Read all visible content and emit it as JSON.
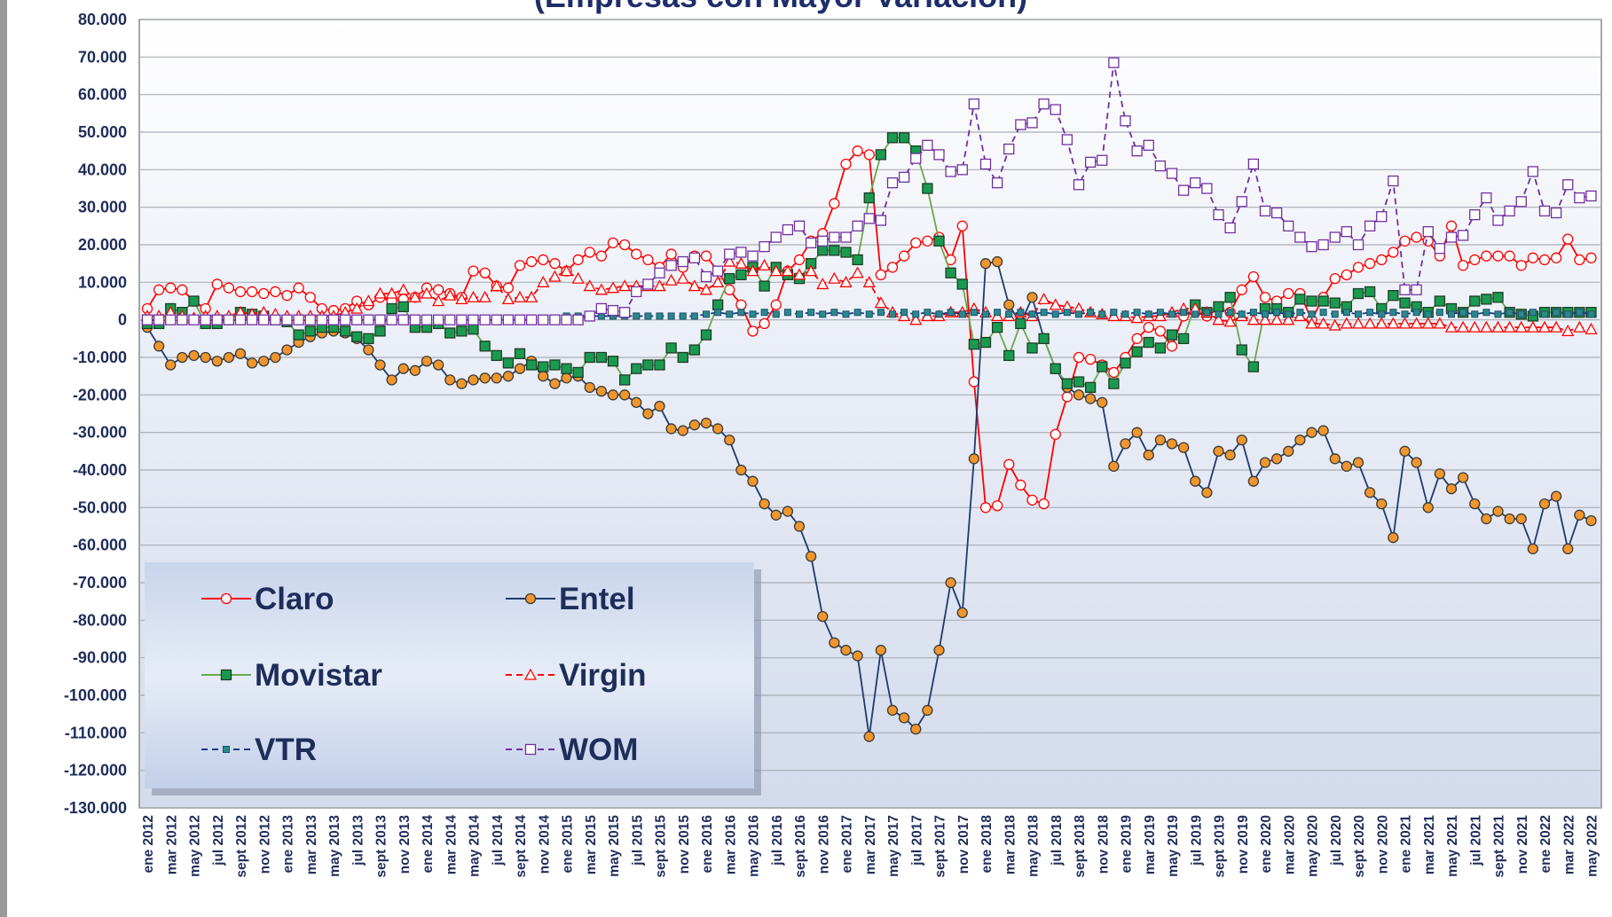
{
  "chart_data": {
    "type": "line",
    "title": "(Empresas con Mayor Variación)",
    "grid": true,
    "legend_position": "lower left",
    "categories": [
      "ene 2012",
      null,
      "mar 2012",
      null,
      "may 2012",
      null,
      "jul 2012",
      null,
      "sept 2012",
      null,
      "nov 2012",
      null,
      "ene 2013",
      null,
      "mar 2013",
      null,
      "may 2013",
      null,
      "jul 2013",
      null,
      "sept 2013",
      null,
      "nov 2013",
      null,
      "ene 2014",
      null,
      "mar 2014",
      null,
      "may 2014",
      null,
      "jul 2014",
      null,
      "sept 2014",
      null,
      "nov 2014",
      null,
      "ene 2015",
      null,
      "mar 2015",
      null,
      "may 2015",
      null,
      "jul 2015",
      null,
      "sept 2015",
      null,
      "nov 2015",
      null,
      "ene 2016",
      null,
      "mar 2016",
      null,
      "may 2016",
      null,
      "jul 2016",
      null,
      "sept 2016",
      null,
      "nov 2016",
      null,
      "ene 2017",
      null,
      "mar 2017",
      null,
      "may 2017",
      null,
      "jul 2017",
      null,
      "sept 2017",
      null,
      "nov 2017",
      null,
      "ene 2018",
      null,
      "mar 2018",
      null,
      "may 2018",
      null,
      "jul 2018",
      null,
      "sept 2018",
      null,
      "nov 2018",
      null,
      "ene 2019",
      null,
      "mar 2019",
      null,
      "may 2019",
      null,
      "jul 2019",
      null,
      "sept 2019",
      null,
      "nov 2019",
      null,
      "ene 2020",
      null,
      "mar 2020",
      null,
      "may 2020",
      null,
      "jul 2020",
      null,
      "sept 2020",
      null,
      "nov 2020",
      null,
      "ene 2021",
      null,
      "mar 2021",
      null,
      "may 2021",
      null,
      "jul 2021",
      null,
      "sept 2021",
      null,
      "nov 2021",
      null,
      "ene 2022",
      null,
      "mar 2022",
      null,
      "may 2022"
    ],
    "ylim": [
      -130000,
      80000
    ],
    "yticks": [
      {
        "value": 80000,
        "label": "80.000"
      },
      {
        "value": 70000,
        "label": "70.000"
      },
      {
        "value": 60000,
        "label": "60.000"
      },
      {
        "value": 50000,
        "label": "50.000"
      },
      {
        "value": 40000,
        "label": "40.000"
      },
      {
        "value": 30000,
        "label": "30.000"
      },
      {
        "value": 20000,
        "label": "20.000"
      },
      {
        "value": 10000,
        "label": "10.000"
      },
      0,
      {
        "value": -10000,
        "label": "-10.000"
      },
      {
        "value": -20000,
        "label": "-20.000"
      },
      {
        "value": -30000,
        "label": "-30.000"
      },
      {
        "value": -40000,
        "label": "-40.000"
      },
      {
        "value": -50000,
        "label": "-50.000"
      },
      {
        "value": -60000,
        "label": "-60.000"
      },
      {
        "value": -70000,
        "label": "-70.000"
      },
      {
        "value": -80000,
        "label": "-80.000"
      },
      {
        "value": -90000,
        "label": "-90.000"
      },
      {
        "value": -100000,
        "label": "-100.000"
      },
      {
        "value": -110000,
        "label": "-110.000"
      },
      {
        "value": -120000,
        "label": "-120.000"
      },
      {
        "value": -130000,
        "label": "-130.000"
      }
    ],
    "series": [
      {
        "name": "Claro",
        "color": "#ff0000",
        "marker": "circle",
        "marker_fill": "#ffffff",
        "dashed": false,
        "values": [
          3000,
          8000,
          8500,
          8000,
          5000,
          3000,
          9500,
          8500,
          7500,
          7500,
          7000,
          7500,
          6500,
          8500,
          6000,
          3000,
          2500,
          3000,
          5000,
          4000,
          6000,
          5000,
          5500,
          6000,
          8500,
          8000,
          7000,
          6000,
          13000,
          12500,
          9000,
          8500,
          14500,
          15500,
          16000,
          15000,
          13000,
          16000,
          18000,
          17000,
          20500,
          20000,
          17500,
          16000,
          14000,
          17500,
          14000,
          17000,
          17000,
          13000,
          8000,
          4000,
          -3000,
          -1000,
          4000,
          13000,
          16000,
          21000,
          23000,
          31000,
          41500,
          45000,
          44000,
          12000,
          14000,
          17000,
          20500,
          21000,
          22000,
          16000,
          25000,
          -16500,
          -50000,
          -49500,
          -38500,
          -44000,
          -48000,
          -49000,
          -30500,
          -20500,
          -10000,
          -10500,
          -12000,
          -14000,
          -10000,
          -5000,
          -2000,
          -3000,
          -7000,
          1000,
          2000,
          1000,
          3000,
          2000,
          8000,
          11500,
          6000,
          5000,
          7000,
          7000,
          0,
          6000,
          11000,
          12000,
          14000,
          15000,
          16000,
          18000,
          21000,
          22000,
          21000,
          17000,
          25000,
          14500,
          16000,
          17000,
          17000,
          17000,
          14500,
          16500,
          16000,
          16500,
          21500,
          16000,
          16500
        ]
      },
      {
        "name": "Entel",
        "color": "#1f3a6e",
        "marker": "circle",
        "marker_fill": "#f0962c",
        "dashed": false,
        "values": [
          -2000,
          -7000,
          -12000,
          -10000,
          -9500,
          -10000,
          -11000,
          -10000,
          -9000,
          -11500,
          -11000,
          -10000,
          -8000,
          -6000,
          -4500,
          -3500,
          -3000,
          -3500,
          -5000,
          -8000,
          -12000,
          -16000,
          -13000,
          -13500,
          -11000,
          -12000,
          -16000,
          -17000,
          -16000,
          -15500,
          -15500,
          -15000,
          -13000,
          -11000,
          -15000,
          -17000,
          -15500,
          -15000,
          -18000,
          -19000,
          -20000,
          -20000,
          -22000,
          -25000,
          -23000,
          -29000,
          -29500,
          -28000,
          -27500,
          -29000,
          -32000,
          -40000,
          -43000,
          -49000,
          -52000,
          -51000,
          -55000,
          -63000,
          -79000,
          -86000,
          -88000,
          -89500,
          -111000,
          -88000,
          -104000,
          -106000,
          -109000,
          -104000,
          -88000,
          -70000,
          -78000,
          -37000,
          15000,
          15500,
          4000,
          -1000,
          6000,
          -5000,
          -13000,
          -18000,
          -20000,
          -21000,
          -22000,
          -39000,
          -33000,
          -30000,
          -36000,
          -32000,
          -33000,
          -34000,
          -43000,
          -46000,
          -35000,
          -36000,
          -32000,
          -43000,
          -38000,
          -37000,
          -35000,
          -32000,
          -30000,
          -29500,
          -37000,
          -39000,
          -38000,
          -46000,
          -49000,
          -58000,
          -35000,
          -38000,
          -50000,
          -41000,
          -45000,
          -42000,
          -49000,
          -53000,
          -51000,
          -53000,
          -53000,
          -61000,
          -49000,
          -47000,
          -61000,
          -52000,
          -53500
        ]
      },
      {
        "name": "Movistar",
        "color": "#6aa84f",
        "marker": "square",
        "marker_fill": "#1a9a50",
        "dashed": false,
        "values": [
          -1000,
          -1000,
          3000,
          2000,
          5000,
          -1000,
          -1000,
          0,
          2000,
          1500,
          1000,
          0,
          -500,
          -4000,
          -3000,
          -2000,
          -2000,
          -3000,
          -4500,
          -5000,
          -3000,
          3000,
          3500,
          -2000,
          -2000,
          -1000,
          -3500,
          -3000,
          -2500,
          -7000,
          -9500,
          -11500,
          -9000,
          -12000,
          -12500,
          -12000,
          -13000,
          -14000,
          -10000,
          -10000,
          -11000,
          -16000,
          -13000,
          -12000,
          -12000,
          -7500,
          -10000,
          -8000,
          -4000,
          4000,
          11000,
          12000,
          14000,
          9000,
          14000,
          12000,
          11000,
          15000,
          18500,
          18500,
          18000,
          16000,
          32500,
          44000,
          48500,
          48500,
          45000,
          35000,
          21000,
          12500,
          9500,
          -6500,
          -6000,
          -2000,
          -9500,
          -1000,
          -7500,
          -5000,
          -13000,
          -17000,
          -16500,
          -18000,
          -12500,
          -17000,
          -11500,
          -8500,
          -6000,
          -7500,
          -4000,
          -5000,
          4000,
          2000,
          3500,
          6000,
          -8000,
          -12500,
          3000,
          3000,
          2000,
          5500,
          5000,
          5000,
          4500,
          3500,
          7000,
          7500,
          3000,
          6500,
          4500,
          3500,
          2000,
          5000,
          3000,
          2000,
          5000,
          5500,
          6000,
          2000,
          1500,
          1000,
          2000,
          2000,
          2000,
          2000,
          2000
        ]
      },
      {
        "name": "Virgin",
        "color": "#ff0000",
        "marker": "triangle",
        "marker_fill": "#ffffff",
        "dashed": true,
        "values": [
          1000,
          1000,
          2000,
          1000,
          500,
          1000,
          1000,
          1000,
          2000,
          1500,
          2000,
          1500,
          1000,
          1000,
          1000,
          1000,
          1000,
          2000,
          3000,
          5000,
          7000,
          7000,
          8000,
          6000,
          7000,
          5000,
          6500,
          5500,
          6000,
          6000,
          9000,
          5500,
          6000,
          6000,
          10000,
          11500,
          13000,
          11000,
          9000,
          8000,
          8500,
          9000,
          9000,
          9000,
          9000,
          10500,
          11000,
          9000,
          8000,
          10000,
          15500,
          15000,
          13000,
          14500,
          13000,
          13000,
          12000,
          13000,
          9500,
          11000,
          10000,
          12500,
          10000,
          4500,
          2000,
          1000,
          0,
          1000,
          1000,
          2000,
          2000,
          3000,
          2000,
          1000,
          1000,
          2000,
          1000,
          5500,
          4000,
          3500,
          3000,
          2000,
          1500,
          1000,
          1000,
          500,
          1000,
          1000,
          2000,
          3000,
          3000,
          2000,
          0,
          -500,
          1000,
          0,
          0,
          0,
          0,
          1000,
          -1000,
          -1000,
          -1500,
          -1000,
          -1000,
          -1000,
          -1000,
          -1000,
          -1000,
          -1000,
          -1000,
          -1000,
          -2000,
          -2000,
          -2000,
          -2000,
          -2000,
          -2000,
          -2000,
          -2000,
          -2000,
          -2000,
          -3000,
          -2000,
          -2500
        ]
      },
      {
        "name": "VTR",
        "color": "#1f3a8a",
        "marker": "small-square",
        "marker_fill": "#2a8a8a",
        "dashed": true,
        "values": [
          0,
          0,
          0,
          0,
          0,
          0,
          0,
          0,
          0,
          0,
          0,
          0,
          0,
          0,
          0,
          0,
          0,
          0,
          0,
          0,
          0,
          0,
          0,
          0,
          0,
          0,
          0,
          0,
          0,
          0,
          0,
          0,
          0,
          0,
          0,
          0,
          1000,
          1000,
          1000,
          1000,
          1000,
          1000,
          1000,
          1000,
          1000,
          1000,
          1000,
          1000,
          1500,
          2000,
          1500,
          2000,
          1500,
          2000,
          1500,
          2000,
          1500,
          2000,
          1500,
          2000,
          1500,
          2000,
          1500,
          2000,
          1500,
          2000,
          1500,
          2000,
          1500,
          2000,
          1500,
          2000,
          1500,
          2000,
          1500,
          2000,
          1500,
          2000,
          1500,
          2000,
          1500,
          2000,
          1500,
          2000,
          1500,
          2000,
          1500,
          2000,
          1500,
          2000,
          1500,
          2000,
          1500,
          2000,
          1500,
          2000,
          1500,
          2000,
          1500,
          2000,
          1500,
          2000,
          1500,
          2000,
          1500,
          2000,
          1500,
          2000,
          1500,
          2000,
          1500,
          2000,
          1500,
          2000,
          1500,
          2000,
          1500,
          2000,
          1500,
          2000,
          1500,
          2000,
          1500,
          2000,
          1500
        ]
      },
      {
        "name": "WOM",
        "color": "#7030a0",
        "marker": "square",
        "marker_fill": "#ffffff",
        "dashed": true,
        "values": [
          0,
          0,
          0,
          0,
          0,
          0,
          0,
          0,
          0,
          0,
          0,
          0,
          0,
          0,
          0,
          0,
          0,
          0,
          0,
          0,
          0,
          0,
          0,
          0,
          0,
          0,
          0,
          0,
          0,
          0,
          0,
          0,
          0,
          0,
          0,
          0,
          0,
          0,
          1000,
          3000,
          2500,
          2000,
          7500,
          9500,
          12500,
          14500,
          15500,
          16500,
          11500,
          13000,
          17500,
          18000,
          17000,
          19500,
          22000,
          24000,
          25000,
          20500,
          21000,
          22000,
          22000,
          25000,
          27000,
          26500,
          36500,
          38000,
          43000,
          46500,
          44000,
          39500,
          40000,
          57500,
          41500,
          36500,
          45500,
          52000,
          52500,
          57500,
          56000,
          48000,
          36000,
          42000,
          42500,
          68500,
          53000,
          45000,
          46500,
          41000,
          39000,
          34500,
          36500,
          35000,
          28000,
          24500,
          31500,
          41500,
          29000,
          28500,
          25000,
          22000,
          19500,
          20000,
          22000,
          23500,
          20000,
          25000,
          27500,
          37000,
          8000,
          8000,
          23500,
          19000,
          22000,
          22500,
          28000,
          32500,
          26500,
          29000,
          31500,
          39500,
          29000,
          28500,
          36000,
          32500,
          33000
        ]
      }
    ]
  }
}
